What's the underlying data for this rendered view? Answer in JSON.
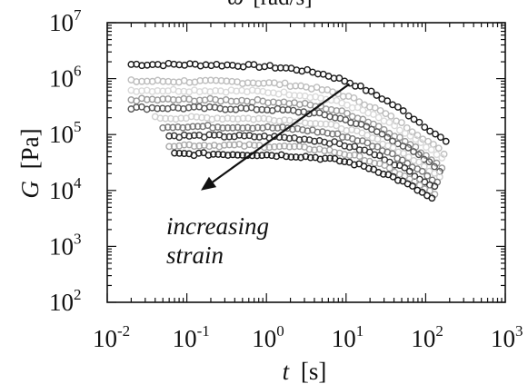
{
  "chart_data": {
    "type": "scatter",
    "x_scale": "log",
    "y_scale": "log",
    "xlim": [
      0.01,
      1000
    ],
    "ylim": [
      100,
      10000000
    ],
    "grid": false,
    "xlabel": {
      "var": "t",
      "unit": "[s]"
    },
    "ylabel": {
      "var": "G",
      "unit": "[Pa]"
    },
    "top_label": {
      "var": "ω",
      "unit": "[rad/s]"
    },
    "x_ticks": [
      {
        "base": "10",
        "exp": "-2",
        "value": 0.01
      },
      {
        "base": "10",
        "exp": "-1",
        "value": 0.1
      },
      {
        "base": "10",
        "exp": "0",
        "value": 1
      },
      {
        "base": "10",
        "exp": "1",
        "value": 10
      },
      {
        "base": "10",
        "exp": "2",
        "value": 100
      },
      {
        "base": "10",
        "exp": "3",
        "value": 1000
      }
    ],
    "y_ticks": [
      {
        "base": "10",
        "exp": "2",
        "value": 100
      },
      {
        "base": "10",
        "exp": "3",
        "value": 1000
      },
      {
        "base": "10",
        "exp": "4",
        "value": 10000
      },
      {
        "base": "10",
        "exp": "5",
        "value": 100000
      },
      {
        "base": "10",
        "exp": "6",
        "value": 1000000
      },
      {
        "base": "10",
        "exp": "7",
        "value": 10000000
      }
    ],
    "annotation": {
      "lines": [
        "increasing",
        "strain"
      ],
      "arrow_from": {
        "x": 11,
        "y": 800000
      },
      "arrow_to": {
        "x": 0.15,
        "y": 10000
      }
    },
    "series": [
      {
        "color": "#1a1a1a",
        "x_start": 0.02,
        "x_end": 180,
        "plateau": 1800000,
        "tau": 12,
        "n": 60
      },
      {
        "color": "#bdbdbd",
        "x_start": 0.02,
        "x_end": 170,
        "plateau": 900000,
        "tau": 14,
        "n": 60
      },
      {
        "color": "#d9d9d9",
        "x_start": 0.02,
        "x_end": 160,
        "plateau": 620000,
        "tau": 15,
        "n": 60
      },
      {
        "color": "#9a9a9a",
        "x_start": 0.02,
        "x_end": 160,
        "plateau": 420000,
        "tau": 16,
        "n": 60
      },
      {
        "color": "#555555",
        "x_start": 0.02,
        "x_end": 150,
        "plateau": 300000,
        "tau": 18,
        "n": 60
      },
      {
        "color": "#cfcfcf",
        "x_start": 0.04,
        "x_end": 150,
        "plateau": 200000,
        "tau": 20,
        "n": 56
      },
      {
        "color": "#777777",
        "x_start": 0.05,
        "x_end": 140,
        "plateau": 140000,
        "tau": 22,
        "n": 56
      },
      {
        "color": "#333333",
        "x_start": 0.06,
        "x_end": 130,
        "plateau": 95000,
        "tau": 24,
        "n": 54
      },
      {
        "color": "#a8a8a8",
        "x_start": 0.06,
        "x_end": 130,
        "plateau": 65000,
        "tau": 26,
        "n": 54
      },
      {
        "color": "#1a1a1a",
        "x_start": 0.07,
        "x_end": 120,
        "plateau": 45000,
        "tau": 30,
        "n": 54
      }
    ]
  }
}
